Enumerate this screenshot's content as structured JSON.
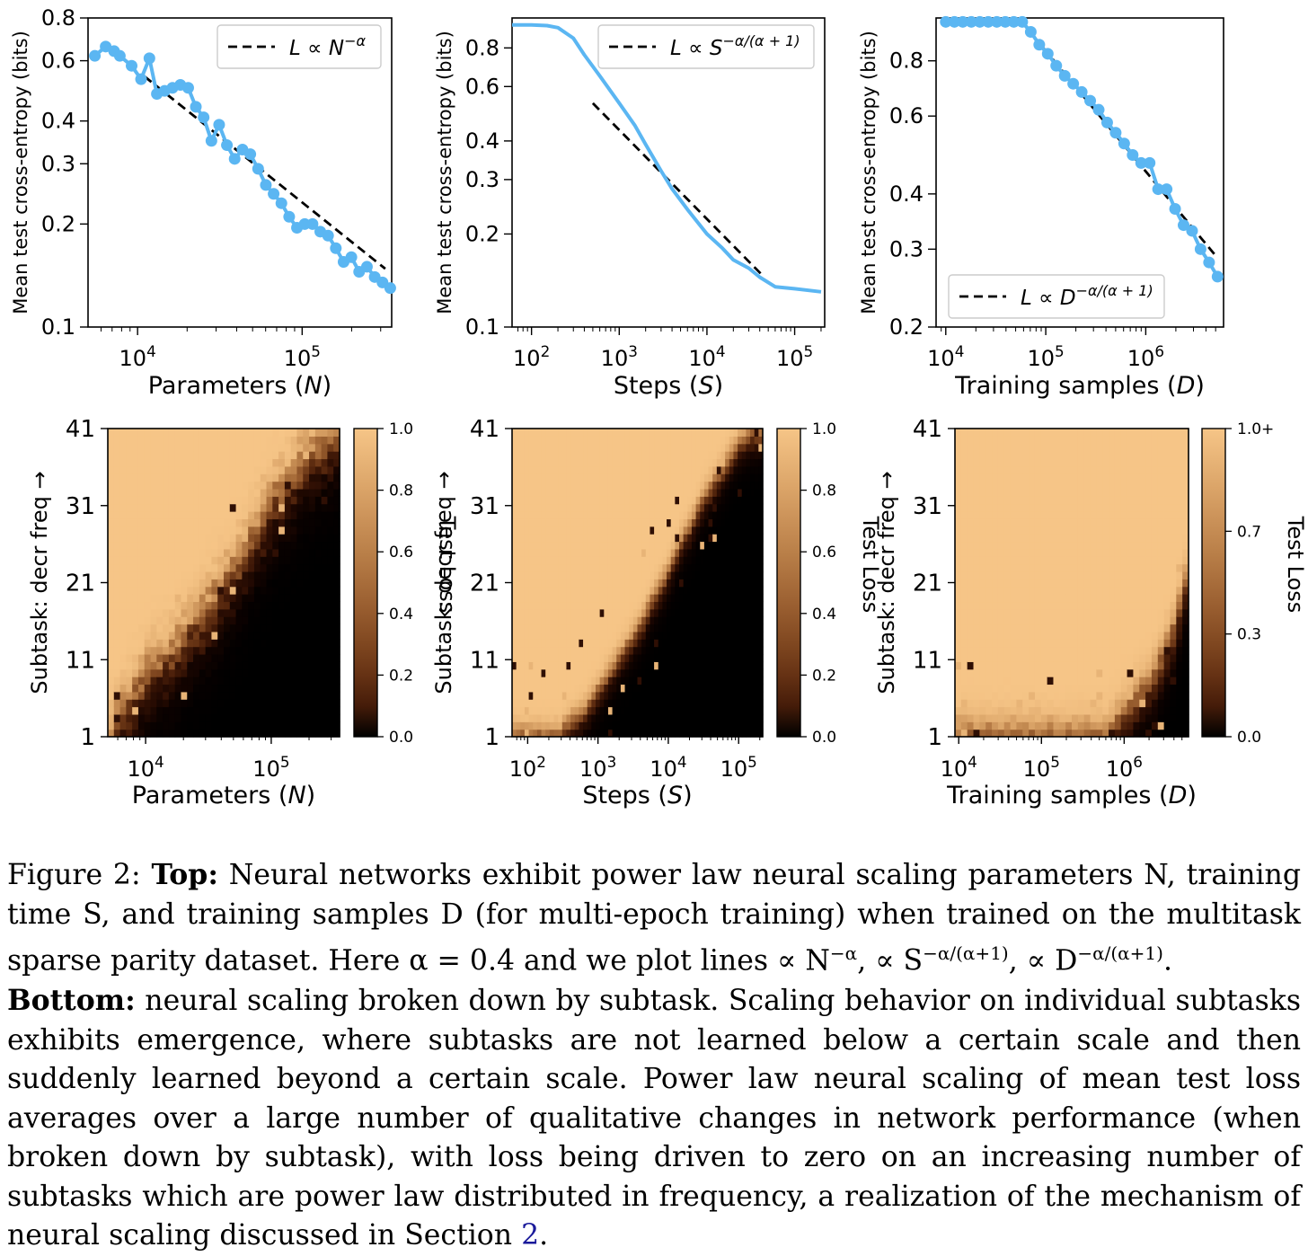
{
  "colors": {
    "series": "#5bb6f2",
    "fit": "#000000",
    "loss_high": "#f6c587",
    "loss_low": "#000000"
  },
  "chart_data": [
    {
      "type": "line",
      "panel": "top-left",
      "xscale": "log",
      "yscale": "log",
      "xlim": [
        5000,
        350000
      ],
      "ylim": [
        0.1,
        0.8
      ],
      "xlabel": "Parameters (N)",
      "ylabel": "Mean test cross-entropy (bits)",
      "xticks": [
        {
          "v": 10000,
          "base": "10",
          "exp": "4"
        },
        {
          "v": 100000,
          "base": "10",
          "exp": "5"
        }
      ],
      "yticks": [
        {
          "v": 0.1,
          "l": "0.1"
        },
        {
          "v": 0.2,
          "l": "0.2"
        },
        {
          "v": 0.3,
          "l": "0.3"
        },
        {
          "v": 0.4,
          "l": "0.4"
        },
        {
          "v": 0.6,
          "l": "0.6"
        },
        {
          "v": 0.8,
          "l": "0.8"
        }
      ],
      "legend": {
        "text": "L ∝ N",
        "sup": "−α",
        "placement": "top-right"
      },
      "series": {
        "markers": true,
        "x": [
          5500,
          6400,
          7200,
          7800,
          9200,
          10500,
          11800,
          13100,
          14600,
          16300,
          18200,
          20300,
          22600,
          25200,
          28100,
          31300,
          34900,
          38900,
          43400,
          48400,
          54000,
          60200,
          67100,
          74800,
          83400,
          93000,
          103700,
          115600,
          128900,
          143700,
          160200,
          178600,
          199100,
          222000,
          247600,
          276000,
          307800,
          343000
        ],
        "y": [
          0.62,
          0.66,
          0.64,
          0.62,
          0.58,
          0.53,
          0.61,
          0.48,
          0.49,
          0.5,
          0.51,
          0.5,
          0.44,
          0.41,
          0.35,
          0.39,
          0.34,
          0.31,
          0.33,
          0.32,
          0.29,
          0.26,
          0.245,
          0.23,
          0.21,
          0.195,
          0.2,
          0.2,
          0.19,
          0.185,
          0.17,
          0.155,
          0.16,
          0.145,
          0.15,
          0.14,
          0.135,
          0.13
        ]
      },
      "fit": {
        "x": [
          11000,
          320000
        ],
        "y": [
          0.54,
          0.148
        ]
      }
    },
    {
      "type": "line",
      "panel": "top-middle",
      "xscale": "log",
      "yscale": "log",
      "xlim": [
        60,
        220000
      ],
      "ylim": [
        0.1,
        1.0
      ],
      "xlabel": "Steps (S)",
      "ylabel": "Mean test cross-entropy (bits)",
      "xticks": [
        {
          "v": 100,
          "base": "10",
          "exp": "2"
        },
        {
          "v": 1000,
          "base": "10",
          "exp": "3"
        },
        {
          "v": 10000,
          "base": "10",
          "exp": "4"
        },
        {
          "v": 100000,
          "base": "10",
          "exp": "5"
        }
      ],
      "yticks": [
        {
          "v": 0.1,
          "l": "0.1"
        },
        {
          "v": 0.2,
          "l": "0.2"
        },
        {
          "v": 0.3,
          "l": "0.3"
        },
        {
          "v": 0.4,
          "l": "0.4"
        },
        {
          "v": 0.6,
          "l": "0.6"
        },
        {
          "v": 0.8,
          "l": "0.8"
        }
      ],
      "legend": {
        "text": "L ∝ S",
        "sup": "−α/(α + 1)",
        "placement": "top-right"
      },
      "series": {
        "markers": false,
        "x": [
          60,
          100,
          150,
          200,
          300,
          400,
          600,
          1000,
          1500,
          2000,
          3000,
          4000,
          6000,
          10000,
          15000,
          20000,
          30000,
          40000,
          60000,
          100000,
          200000
        ],
        "y": [
          0.95,
          0.95,
          0.945,
          0.93,
          0.86,
          0.76,
          0.65,
          0.53,
          0.45,
          0.39,
          0.32,
          0.28,
          0.24,
          0.2,
          0.18,
          0.165,
          0.155,
          0.145,
          0.135,
          0.133,
          0.13
        ]
      },
      "fit": {
        "x": [
          500,
          45000
        ],
        "y": [
          0.53,
          0.145
        ]
      }
    },
    {
      "type": "line",
      "panel": "top-right",
      "xscale": "log",
      "yscale": "log",
      "xlim": [
        8000,
        6000000
      ],
      "ylim": [
        0.2,
        1.0
      ],
      "xlabel": "Training samples (D)",
      "ylabel": "Mean test cross-entropy (bits)",
      "xticks": [
        {
          "v": 10000,
          "base": "10",
          "exp": "4"
        },
        {
          "v": 100000,
          "base": "10",
          "exp": "5"
        },
        {
          "v": 1000000,
          "base": "10",
          "exp": "6"
        }
      ],
      "yticks": [
        {
          "v": 0.2,
          "l": "0.2"
        },
        {
          "v": 0.3,
          "l": "0.3"
        },
        {
          "v": 0.4,
          "l": "0.4"
        },
        {
          "v": 0.6,
          "l": "0.6"
        },
        {
          "v": 0.8,
          "l": "0.8"
        }
      ],
      "legend": {
        "text": "L ∝ D",
        "sup": "−α/(α + 1)",
        "placement": "bottom-left"
      },
      "series": {
        "markers": true,
        "x": [
          10000,
          12200,
          14800,
          18000,
          21900,
          26600,
          32400,
          39400,
          47900,
          58200,
          70800,
          86100,
          104700,
          127300,
          154800,
          188200,
          228800,
          278200,
          338300,
          411400,
          500200,
          608300,
          739600,
          899300,
          1093500,
          1329600,
          1616700,
          1965800,
          2390300,
          2906400,
          3534000,
          4297200,
          5225000
        ],
        "y": [
          0.98,
          0.98,
          0.98,
          0.98,
          0.98,
          0.98,
          0.98,
          0.98,
          0.98,
          0.98,
          0.93,
          0.87,
          0.83,
          0.78,
          0.74,
          0.71,
          0.68,
          0.65,
          0.62,
          0.58,
          0.55,
          0.52,
          0.49,
          0.47,
          0.47,
          0.41,
          0.41,
          0.37,
          0.34,
          0.33,
          0.3,
          0.28,
          0.26
        ]
      },
      "fit": {
        "x": [
          62000,
          5000000
        ],
        "y": [
          0.96,
          0.29
        ]
      }
    },
    {
      "type": "heatmap",
      "panel": "bottom-left",
      "xscale": "log",
      "xlim": [
        5000,
        350000
      ],
      "xlabel": "Parameters (N)",
      "ylabel": "Subtask: decr freq →",
      "yticks": [
        "1",
        "11",
        "21",
        "31",
        "41"
      ],
      "xticks": [
        {
          "v": 10000,
          "base": "10",
          "exp": "4"
        },
        {
          "v": 100000,
          "base": "10",
          "exp": "5"
        }
      ],
      "colorbar": {
        "label": "Test Loss",
        "ticks": [
          "0.0",
          "0.2",
          "0.4",
          "0.6",
          "0.8",
          "1.0"
        ]
      },
      "cols": 38,
      "rows": 41,
      "boundary": [
        0,
        3,
        5,
        7,
        9,
        10,
        11,
        13,
        15,
        16,
        18,
        20,
        22,
        24,
        27,
        29,
        32,
        33,
        35,
        37,
        38,
        39,
        40
      ],
      "boundary_start_col": 0,
      "sharpness": 0.7,
      "noise": 0.35,
      "max_level": 1.0
    },
    {
      "type": "heatmap",
      "panel": "bottom-middle",
      "xscale": "log",
      "xlim": [
        60,
        220000
      ],
      "xlabel": "Steps (S)",
      "ylabel": "Subtask: decr freq →",
      "yticks": [
        "1",
        "11",
        "21",
        "31",
        "41"
      ],
      "xticks": [
        {
          "v": 100,
          "base": "10",
          "exp": "2"
        },
        {
          "v": 1000,
          "base": "10",
          "exp": "3"
        },
        {
          "v": 10000,
          "base": "10",
          "exp": "4"
        },
        {
          "v": 100000,
          "base": "10",
          "exp": "5"
        }
      ],
      "colorbar": {
        "label": "Test Loss",
        "ticks": [
          "0.0",
          "0.2",
          "0.4",
          "0.6",
          "0.8",
          "1.0"
        ]
      },
      "cols": 60,
      "rows": 41,
      "boundary": [
        1,
        2,
        3,
        5,
        7,
        9,
        11,
        13,
        15,
        18,
        20,
        23,
        26,
        28,
        31,
        33,
        35,
        37,
        39,
        40,
        40
      ],
      "boundary_start_col": 12,
      "sharpness": 1.4,
      "noise": 0.15,
      "max_level": 1.0
    },
    {
      "type": "heatmap",
      "panel": "bottom-right",
      "xscale": "log",
      "xlim": [
        9000,
        6000000
      ],
      "xlabel": "Training samples (D)",
      "ylabel": "Subtask: decr freq →",
      "yticks": [
        "1",
        "11",
        "21",
        "31",
        "41"
      ],
      "xticks": [
        {
          "v": 10000,
          "base": "10",
          "exp": "4"
        },
        {
          "v": 100000,
          "base": "10",
          "exp": "5"
        },
        {
          "v": 1000000,
          "base": "10",
          "exp": "6"
        }
      ],
      "colorbar": {
        "label": "Test Loss",
        "ticks": [
          "0.0",
          "0.3",
          "0.7",
          "1.0+"
        ]
      },
      "cols": 38,
      "rows": 41,
      "boundary": [
        0,
        1,
        2,
        3,
        4,
        5,
        6,
        7,
        8,
        10,
        12,
        14,
        17,
        20
      ],
      "boundary_start_col": 24,
      "sharpness": 0.9,
      "noise": 0.2,
      "max_level": 1.0
    }
  ],
  "caption": {
    "fig": "Figure 2:",
    "top_label": "Top:",
    "top_text": " Neural networks exhibit power law neural scaling parameters N, training time S, and training samples D (for multi-epoch training) when trained on the multitask sparse parity dataset. Here α = 0.4 and we plot lines ∝ N",
    "sup1": "−α",
    "mid1": ", ∝ S",
    "sup2": "−α/(α+1)",
    "mid2": ", ∝ D",
    "sup3": "−α/(α+1)",
    "end1": ".",
    "bottom_label": "Bottom:",
    "bottom_text": " neural scaling broken down by subtask. Scaling behavior on individual subtasks exhibits emergence, where subtasks are not learned below a certain scale and then suddenly learned beyond a certain scale.  Power law neural scaling of mean test loss averages over a large number of qualitative changes in network performance (when broken down by subtask), with loss being driven to zero on an increasing number of subtasks which are power law distributed in frequency, a realization of the mechanism of neural scaling discussed in Section ",
    "section_ref": "2",
    "end2": "."
  }
}
